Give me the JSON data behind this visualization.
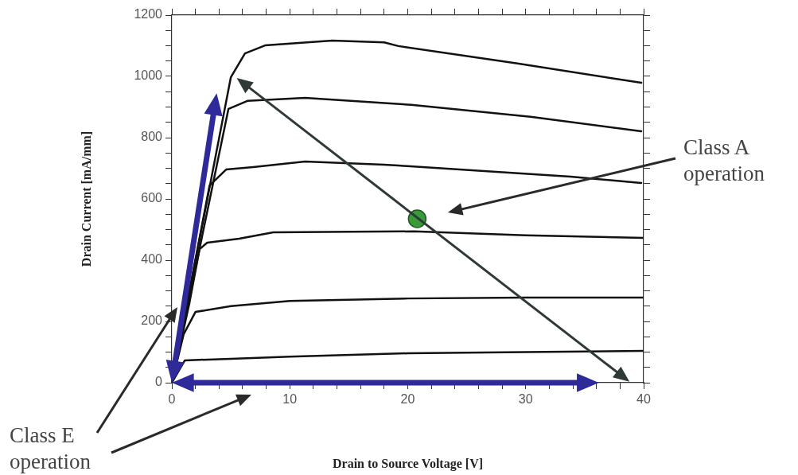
{
  "chart_data": {
    "type": "line",
    "xlabel": "Drain to Source Voltage [V]",
    "ylabel": "Drain Current [mA/mm]",
    "xlim": [
      0,
      40
    ],
    "ylim": [
      0,
      1200
    ],
    "xticks": [
      0,
      {
        "value": 2,
        "label": null
      },
      {
        "value": 4,
        "label": null
      },
      {
        "value": 6,
        "label": null
      },
      {
        "value": 8,
        "label": null
      },
      10,
      {
        "value": 12,
        "label": null
      },
      {
        "value": 14,
        "label": null
      },
      {
        "value": 16,
        "label": null
      },
      {
        "value": 18,
        "label": null
      },
      20,
      {
        "value": 22,
        "label": null
      },
      {
        "value": 24,
        "label": null
      },
      {
        "value": 26,
        "label": null
      },
      {
        "value": 28,
        "label": null
      },
      30,
      {
        "value": 32,
        "label": null
      },
      {
        "value": 34,
        "label": null
      },
      {
        "value": 36,
        "label": null
      },
      {
        "value": 38,
        "label": null
      },
      40
    ],
    "yticks": [
      0,
      {
        "value": 50,
        "label": null
      },
      {
        "value": 100,
        "label": null
      },
      {
        "value": 150,
        "label": null
      },
      200,
      {
        "value": 250,
        "label": null
      },
      {
        "value": 300,
        "label": null
      },
      {
        "value": 350,
        "label": null
      },
      400,
      {
        "value": 450,
        "label": null
      },
      {
        "value": 500,
        "label": null
      },
      {
        "value": 550,
        "label": null
      },
      600,
      {
        "value": 650,
        "label": null
      },
      {
        "value": 700,
        "label": null
      },
      {
        "value": 750,
        "label": null
      },
      800,
      {
        "value": 850,
        "label": null
      },
      {
        "value": 900,
        "label": null
      },
      {
        "value": 950,
        "label": null
      },
      1000,
      {
        "value": 1050,
        "label": null
      },
      {
        "value": 1100,
        "label": null
      },
      {
        "value": 1150,
        "label": null
      },
      1200
    ],
    "grid": false,
    "legend": false,
    "marker": "none",
    "line_style": "solid",
    "series": [
      {
        "type": "line",
        "color": "#111111",
        "x": [
          0,
          1.1,
          5,
          10,
          20,
          30,
          40
        ],
        "values": [
          0,
          73,
          78,
          85,
          96,
          100,
          104
        ]
      },
      {
        "type": "line",
        "color": "#111111",
        "x": [
          0,
          1,
          2,
          5,
          10,
          20,
          30,
          40
        ],
        "values": [
          0,
          158,
          231,
          250,
          267,
          275,
          278,
          278
        ]
      },
      {
        "type": "line",
        "color": "#111111",
        "x": [
          0,
          1.5,
          2.35,
          3,
          5.7,
          8.6,
          20.5,
          30,
          40
        ],
        "values": [
          0,
          262,
          436,
          457,
          470,
          491,
          494,
          481,
          473
        ]
      },
      {
        "type": "line",
        "color": "#111111",
        "x": [
          0,
          3.2,
          4.6,
          6.9,
          11.3,
          18,
          19.2,
          33.8,
          39.8
        ],
        "values": [
          0,
          644,
          696,
          704,
          722,
          712,
          709,
          673,
          652
        ]
      },
      {
        "type": "line",
        "color": "#111111",
        "x": [
          0,
          4.8,
          6.4,
          11.3,
          20.3,
          30.4,
          39.8
        ],
        "values": [
          0,
          894,
          920,
          930,
          907,
          868,
          821
        ]
      },
      {
        "type": "line",
        "color": "#111111",
        "x": [
          0,
          5,
          6.2,
          7.9,
          13.6,
          18,
          19.2,
          29.3,
          39.8
        ],
        "values": [
          0,
          997,
          1075,
          1101,
          1117,
          1111,
          1099,
          1042,
          979
        ]
      },
      {
        "type": "scatter",
        "color": "#3a9a3a",
        "marker": "circle",
        "x": [
          20.8
        ],
        "values": [
          535
        ]
      }
    ],
    "annotations": [
      "Class A operation",
      "Class E operation"
    ]
  }
}
